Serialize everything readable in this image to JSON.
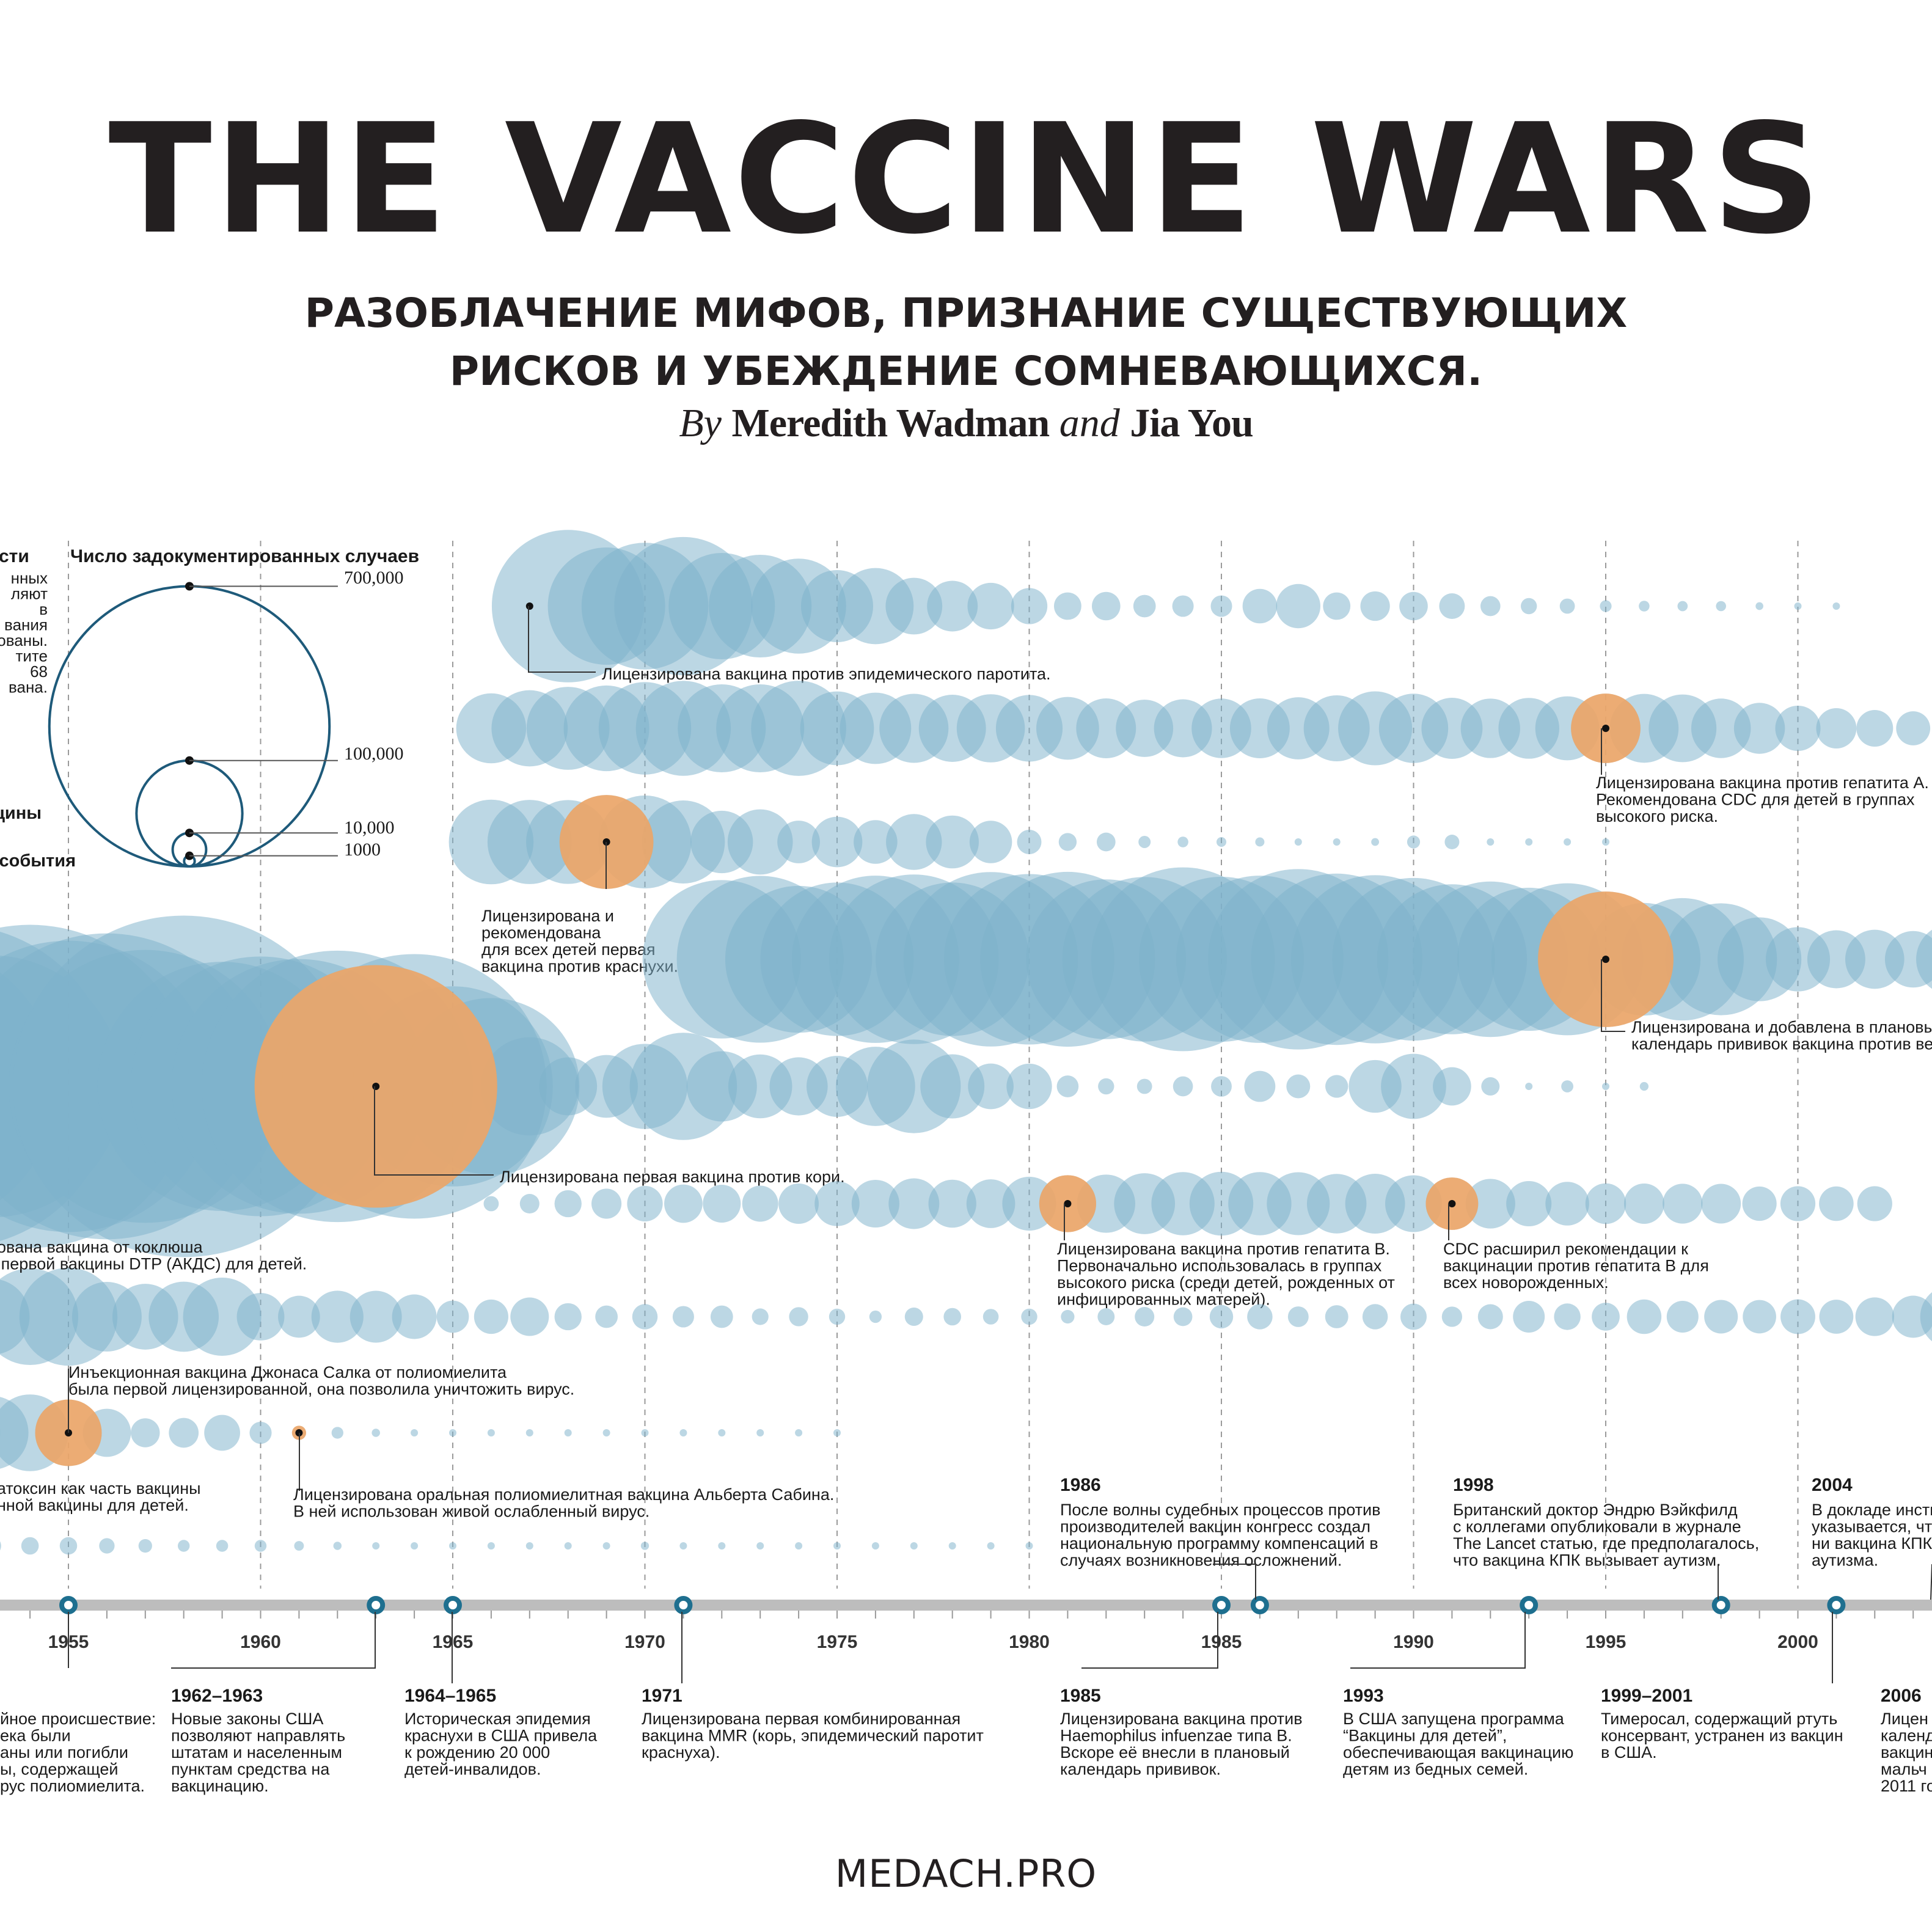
{
  "header": {
    "title": "THE VACCINE WARS",
    "subtitle_line1": "РАЗОБЛАЧЕНИЕ МИФОВ, ПРИЗНАНИЕ СУЩЕСТВУЮЩИХ",
    "subtitle_line2": "РИСКОВ И УБЕЖДЕНИЕ СОМНЕВАЮЩИХСЯ.",
    "by_word": "By",
    "author1": "Meredith Wadman",
    "and_word": "and",
    "author2": "Jia You"
  },
  "legend": {
    "heading": "Число задокументированных случаев",
    "partial_heading": "сти",
    "partial_lines": [
      "нных",
      "ляют",
      "в",
      "вания",
      "ованы.",
      "тите",
      "68",
      "вана."
    ],
    "partial_label_vaccine": "цины",
    "partial_label_event": "события",
    "scale": [
      {
        "cases": 700000,
        "label": "700,000"
      },
      {
        "cases": 100000,
        "label": "100,000"
      },
      {
        "cases": 10000,
        "label": "10,000"
      },
      {
        "cases": 1000,
        "label": "1000"
      }
    ]
  },
  "chart_data": {
    "type": "bubble-timeline",
    "x_axis": {
      "min": 1950.2,
      "max": 2004.4,
      "ticks": [
        1955,
        1960,
        1965,
        1970,
        1975,
        1980,
        1985,
        1990,
        1995,
        2000
      ],
      "tick_labels": [
        "1955",
        "1960",
        "1965",
        "1970",
        "1975",
        "1980",
        "1985",
        "1990",
        "1995",
        "2000"
      ]
    },
    "colors": {
      "case_bubble": "#7fb2cc",
      "event_bubble": "#f4a460",
      "legend_ring": "#1e5a7a",
      "axis": "#bdbdbd",
      "marker": "#1e6f8f"
    },
    "rows": [
      {
        "name": "mumps",
        "start": 1968,
        "step": 1,
        "cases": [
          152000,
          90000,
          105000,
          125000,
          74000,
          69000,
          59000,
          34000,
          38000,
          21000,
          16800,
          14200,
          8600,
          4900,
          5300,
          3300,
          3000,
          3000,
          7800,
          12800,
          4900,
          5700,
          5300,
          4300,
          2600,
          1700,
          1500,
          900,
          750,
          680,
          670,
          390,
          340,
          270
        ],
        "events": [
          {
            "year": 1967,
            "cases": 240000,
            "label": "Лицензирована вакцина против эпидемического паротита.",
            "color": "case"
          }
        ]
      },
      {
        "name": "hepatitis-a",
        "start": 1966,
        "step": 1,
        "cases": [
          32000,
          38000,
          45000,
          48000,
          56000,
          59000,
          50700,
          50700,
          59200,
          35600,
          33300,
          31200,
          29500,
          30400,
          29100,
          25800,
          23400,
          21500,
          22000,
          23200,
          23400,
          25300,
          28500,
          35800,
          31400,
          24400,
          23100,
          24200,
          26800,
          31600,
          31000,
          30000,
          23200,
          17000,
          13400,
          10600,
          8800,
          7600,
          5700
        ],
        "events": [
          {
            "year": 1995,
            "cases": 31600,
            "label_lines": [
              "Лицензирована вакцина против гепатита А.",
              "Рекомендована CDC для детей в группах",
              "высокого риска."
            ]
          }
        ]
      },
      {
        "name": "rubella",
        "start": 1966,
        "step": 1,
        "cases": [
          46900,
          46400,
          46000,
          57700,
          56600,
          45100,
          25500,
          27800,
          11900,
          16700,
          12500,
          20400,
          18300,
          11800,
          3900,
          2100,
          2300,
          970,
          750,
          630,
          550,
          310,
          230,
          400,
          1100,
          1400,
          160,
          190,
          230,
          130
        ],
        "events": [
          {
            "year": 1969,
            "cases": 57700,
            "label_lines": [
              "Лицензирована и",
              "рекомендована",
              "для всех детей первая",
              "вакцина против краснухи."
            ]
          }
        ]
      },
      {
        "name": "varicella",
        "start": 1972,
        "step": 1,
        "cases": [
          164000,
          182000,
          141000,
          154000,
          183000,
          188000,
          154000,
          199000,
          190000,
          200000,
          167000,
          177000,
          221000,
          178000,
          183000,
          213000,
          192000,
          185000,
          173000,
          147000,
          158000,
          134000,
          151000,
          120000,
          83000,
          98000,
          82000,
          46000,
          27000,
          22000,
          22800,
          20900,
          32900
        ],
        "events": [
          {
            "year": 1995,
            "cases": 120000,
            "label_lines": [
              "Лицензирована и добавлена в плановый",
              "календарь прививок вакцина против ветряной оспы."
            ]
          }
        ]
      },
      {
        "name": "measles",
        "start": 1950,
        "step": 1,
        "cases": [
          319000,
          530000,
          683000,
          449000,
          683000,
          555000,
          612000,
          487000,
          763000,
          406000,
          441000,
          424000,
          482000,
          385000,
          458000,
          262000,
          204000,
          63000,
          22000,
          25800,
          47400,
          75300,
          32300,
          26700,
          22100,
          24400,
          41100,
          57300,
          26900,
          13600,
          13500,
          3100,
          1700,
          1500,
          2600,
          2800,
          6300,
          3700,
          3400,
          18200,
          27800,
          9600,
          2200,
          310,
          960,
          310,
          500
        ],
        "events": [
          {
            "year": 1963,
            "cases": 385000,
            "label": "Лицензирована первая вакцина против кори."
          }
        ]
      },
      {
        "name": "hepatitis-b",
        "start": 1966,
        "step": 1,
        "cases": [
          1500,
          2500,
          4800,
          5900,
          8300,
          9600,
          9400,
          8500,
          10600,
          13200,
          14900,
          16800,
          15000,
          15500,
          19000,
          21200,
          22200,
          24300,
          26100,
          26600,
          26100,
          25900,
          23200,
          23400,
          21100,
          18000,
          16100,
          13400,
          12500,
          10800,
          10600,
          10400,
          10300,
          7700,
          8000,
          7800,
          8000
        ],
        "events": [
          {
            "year": 1981,
            "cases": 21200,
            "label_lines": [
              "Лицензирована вакцина против гепатита В.",
              "Первоначально использовалась в группах",
              "высокого риска (среди детей, рожденных от",
              "инфицированных матерей)."
            ]
          },
          {
            "year": 1991,
            "cases": 18000,
            "label_lines": [
              "CDC расширил рекомендации к",
              "вакцинации против гепатита В для",
              "всех новорожденных."
            ]
          }
        ]
      },
      {
        "name": "pertussis-row",
        "start": 1950,
        "step": 1,
        "cases": [
          120000,
          68700,
          45000,
          37800,
          60900,
          62800,
          31700,
          28300,
          32100,
          40000,
          14800,
          11500,
          17700,
          17600,
          13000,
          6800,
          7700,
          9700,
          4800,
          3300,
          4200,
          3000,
          3300,
          1800,
          2400,
          1700,
          1000,
          2200,
          2000,
          1600,
          1700,
          1200,
          1900,
          2500,
          2300,
          3600,
          4200,
          2800,
          3500,
          4200,
          4500,
          2700,
          4100,
          6600,
          4600,
          5100,
          7800,
          6600,
          7400,
          7300,
          7900,
          7600,
          9800,
          11600,
          25800
        ],
        "events": [
          {
            "year": 1949,
            "cases": 150000,
            "label_lines": [
              "рована вакцина от коклюша",
              "ь первой вакцины DTP (АКДС) для детей."
            ]
          }
        ]
      },
      {
        "name": "polio",
        "start": 1950,
        "step": 1,
        "cases": [
          33300,
          28400,
          57900,
          35600,
          38500,
          28985,
          15140,
          5485,
          5787,
          8425,
          3190,
          1312,
          910,
          449,
          122,
          72,
          113,
          41,
          53,
          20,
          33,
          21,
          31,
          8,
          7,
          13
        ],
        "events": [
          {
            "year": 1955,
            "cases": 28985,
            "label_lines": [
              "Инъекционная вакцина Джонаса Салка от полиомиелита",
              "была первой лицензированной, она позволила уничтожить вирус."
            ]
          },
          {
            "year": 1961,
            "cases": 1312,
            "label_lines": [
              "Лицензирована оральная полиомиелитная вакцина Альберта Сабина.",
              "В ней использован живой ослабленный вирус."
            ]
          }
        ]
      },
      {
        "name": "diphtheria",
        "start": 1950,
        "step": 1,
        "cases": [
          5800,
          3900,
          2900,
          2400,
          2000,
          1980,
          1560,
          1210,
          920,
          930,
          920,
          615,
          444,
          314,
          293,
          164,
          209,
          219,
          260,
          241,
          435,
          215,
          152,
          228,
          272,
          307,
          128,
          84,
          76,
          59,
          3
        ],
        "events": [
          {
            "year": 1948,
            "cases": 8000,
            "label_lines": [
              "натоксин как часть вакцины",
              "анной вакцины для детей."
            ]
          }
        ]
      }
    ],
    "timeline": {
      "events_above": [
        {
          "year": "1986",
          "lines": [
            "После волны судебных процессов против",
            "производителей вакцин конгресс создал",
            "национальную программу компенсаций в",
            "случаях возникновения осложнений."
          ]
        },
        {
          "year": "1998",
          "lines": [
            "Британский доктор Эндрю Вэйкфилд",
            "с коллегами опубликовали в журнале",
            "The Lancet статью, где предполагалось,",
            "что вакцина КПК вызывает аутизм."
          ]
        },
        {
          "year": "2004",
          "lines": [
            "В докладе инсти",
            "указывается, что",
            "ни вакцина КПК,",
            "аутизма."
          ]
        }
      ],
      "events_below": [
        {
          "year": "",
          "lines": [
            "йное происшествие:",
            "ека были",
            "аны или погибли",
            "ы, содержащей",
            "рус полиомиелита."
          ]
        },
        {
          "year": "1962–1963",
          "lines": [
            "Новые законы США",
            "позволяют направлять",
            "штатам и населенным",
            "пунктам средства на",
            "вакцинацию."
          ]
        },
        {
          "year": "1964–1965",
          "lines": [
            "Историческая эпидемия",
            "краснухи в США привела",
            "к рождению 20 000",
            "детей-инвалидов."
          ]
        },
        {
          "year": "1971",
          "lines": [
            "Лицензирована первая комбинированная",
            "вакцина MMR (корь, эпидемический паротит",
            "краснуха)."
          ]
        },
        {
          "year": "1985",
          "lines": [
            "Лицензирована вакцина против",
            "Haemophilus infuenzae типа B.",
            "Вскоре её внесли в плановый",
            "календарь прививок."
          ]
        },
        {
          "year": "1993",
          "lines": [
            "В США запущена программа",
            "“Вакцины для детей”,",
            "обеспечивающая вакцинацию",
            "детям из бедных семей."
          ]
        },
        {
          "year": "1999–2001",
          "lines": [
            "Тимеросал, содержащий ртуть",
            "консервант, устранен из вакцин",
            "в США."
          ]
        },
        {
          "year": "2006",
          "lines": [
            "Лицен",
            "календ",
            "вакцин",
            "мальч",
            "2011 го"
          ]
        }
      ],
      "markers": [
        1955,
        1963,
        1965,
        1971,
        1985,
        1986,
        1993,
        1998,
        2001
      ]
    }
  },
  "footer": {
    "brand": "MEDACH.PRO"
  }
}
